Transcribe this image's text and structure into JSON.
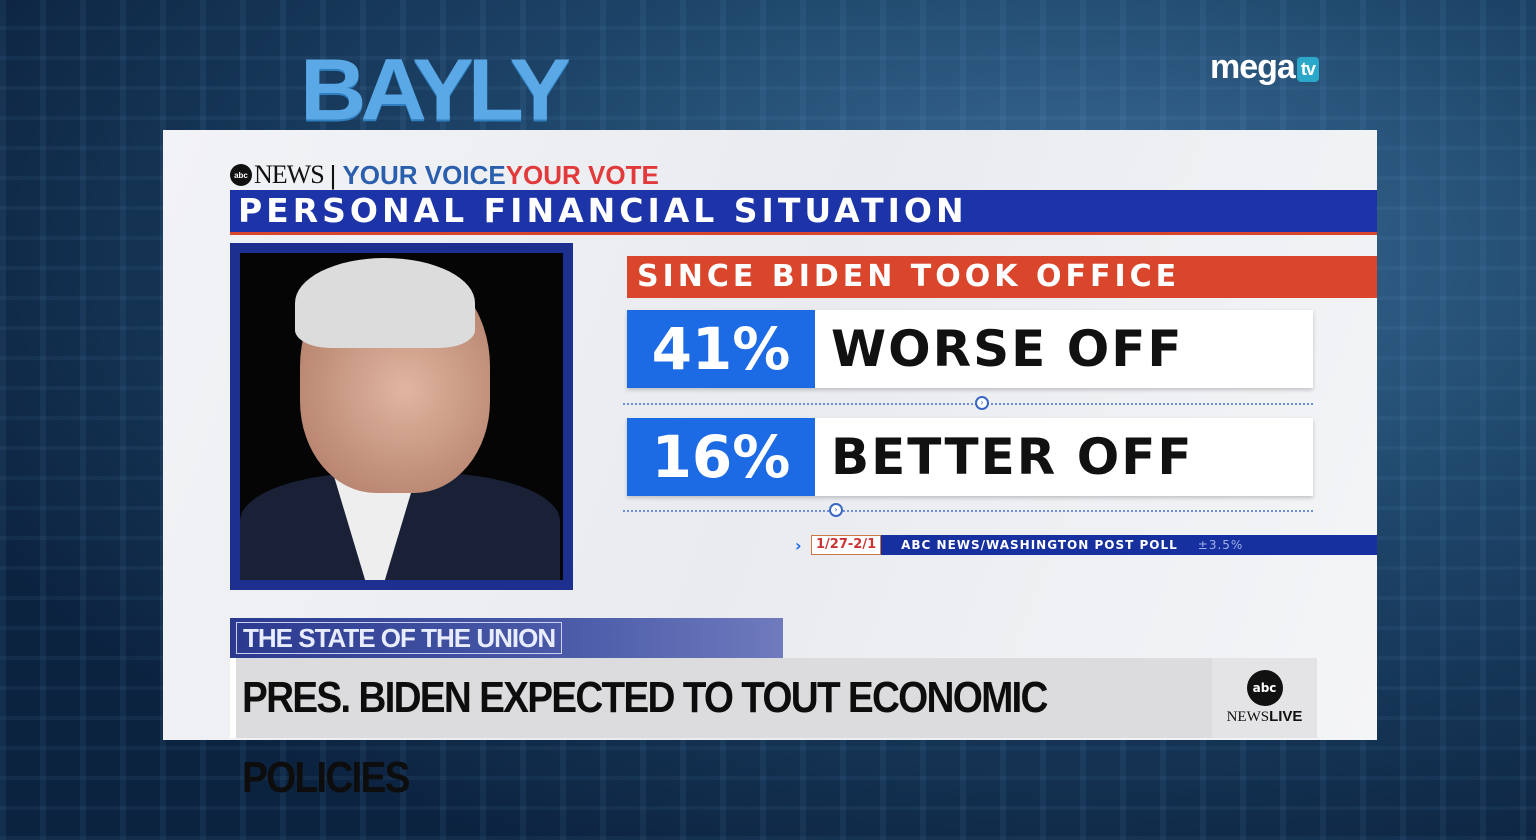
{
  "overlay": {
    "show_logo": "BAYLY",
    "channel_logo": "mega",
    "channel_logo_badge": "tv"
  },
  "graphic": {
    "network": "NEWS",
    "network_badge": "abc",
    "campaign_part1": "YOUR VOICE",
    "campaign_part2": "YOUR VOTE",
    "title": "PERSONAL FINANCIAL SITUATION",
    "subtitle": "SINCE BIDEN TOOK OFFICE",
    "results": [
      {
        "percent": "41%",
        "label": "WORSE OFF"
      },
      {
        "percent": "16%",
        "label": "BETTER OFF"
      }
    ],
    "source": {
      "dates": "1/27-2/1",
      "poll": "ABC NEWS/WASHINGTON POST POLL",
      "margin": "±3.5%"
    },
    "colors": {
      "blue": "#1d33a8",
      "accent_red": "#d9462c",
      "percent_blue": "#1d6ae5"
    }
  },
  "lower_third": {
    "segment": "THE STATE OF THE UNION",
    "headline": "PRES. BIDEN EXPECTED TO TOUT ECONOMIC POLICIES",
    "bug_circle": "abc",
    "bug_news": "NEWS",
    "bug_live": "LIVE"
  }
}
